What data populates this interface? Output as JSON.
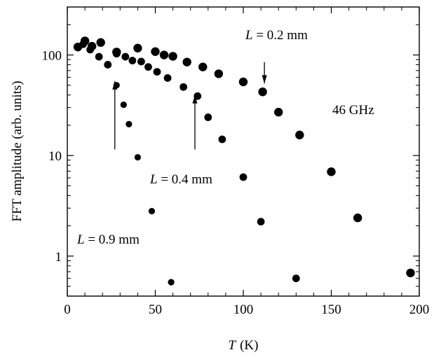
{
  "chart_data": {
    "type": "scatter",
    "xlabel_var": "T",
    "xlabel_unit": "(K)",
    "ylabel": "FFT amplitude  (arb. units)",
    "xlim": [
      0,
      200
    ],
    "ylim": [
      0.4,
      300
    ],
    "yscale": "log",
    "grid": false,
    "x_ticks": [
      0,
      50,
      100,
      150,
      200
    ],
    "y_ticks": [
      1,
      10,
      100
    ],
    "annotations": [
      {
        "var": "L",
        "text": " = 0.2 mm",
        "arrow_x": 112,
        "arrow_dir": "down",
        "arrow_from": 85,
        "arrow_to": 52
      },
      {
        "var": "L",
        "text": " = 0.4 mm"
      },
      {
        "var": "L",
        "text": " = 0.9 mm"
      },
      {
        "text": "46 GHz"
      }
    ],
    "arrows": [
      {
        "x": 27,
        "y_from": 11.5,
        "y_to": 55,
        "dir": "up"
      },
      {
        "x": 72.5,
        "y_from": 11.5,
        "y_to": 40,
        "dir": "up"
      }
    ],
    "series": [
      {
        "x": [
          6,
          10,
          14,
          19,
          28,
          40,
          50,
          55,
          60,
          68,
          77,
          86,
          100,
          111,
          120,
          132,
          150,
          165,
          195
        ],
        "y": [
          120,
          138,
          122,
          133,
          107,
          117,
          108,
          100,
          97,
          85,
          76,
          65,
          54,
          43,
          27,
          16,
          6.9,
          2.4,
          0.68
        ]
      },
      {
        "x": [
          9,
          13,
          18,
          23,
          28,
          33,
          37,
          42,
          46,
          51,
          57,
          66,
          74,
          80,
          88,
          100,
          110,
          130
        ],
        "y": [
          128,
          113,
          96,
          80,
          103,
          96,
          88,
          86,
          76,
          68,
          59,
          48,
          39,
          24,
          14.5,
          6.1,
          2.2,
          0.6
        ]
      },
      {
        "x": [
          28,
          32,
          35,
          40,
          48,
          59
        ],
        "y": [
          50,
          32,
          20.5,
          9.6,
          2.8,
          0.55
        ]
      }
    ]
  }
}
